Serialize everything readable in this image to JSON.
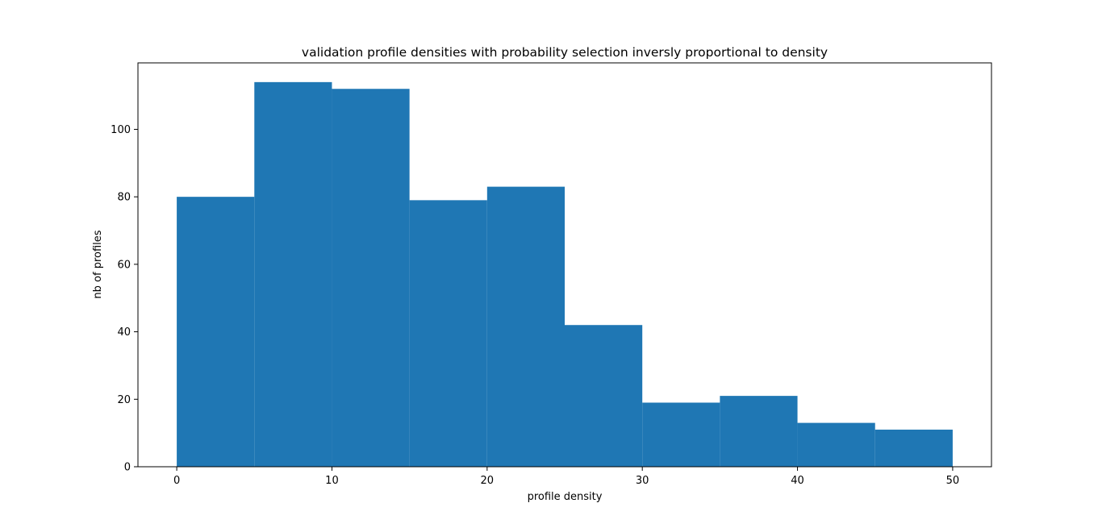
{
  "chart_data": {
    "type": "bar",
    "title": "validation profile densities with probability selection inversly proportional to density",
    "xlabel": "profile density",
    "ylabel": "nb of profiles",
    "bins": [
      {
        "x0": 0,
        "x1": 5,
        "count": 80
      },
      {
        "x0": 5,
        "x1": 10,
        "count": 114
      },
      {
        "x0": 10,
        "x1": 15,
        "count": 112
      },
      {
        "x0": 15,
        "x1": 20,
        "count": 79
      },
      {
        "x0": 20,
        "x1": 25,
        "count": 83
      },
      {
        "x0": 25,
        "x1": 30,
        "count": 42
      },
      {
        "x0": 30,
        "x1": 35,
        "count": 19
      },
      {
        "x0": 35,
        "x1": 40,
        "count": 21
      },
      {
        "x0": 40,
        "x1": 45,
        "count": 13
      },
      {
        "x0": 45,
        "x1": 50,
        "count": 11
      }
    ],
    "xticks": [
      "0",
      "10",
      "20",
      "30",
      "40",
      "50"
    ],
    "yticks": [
      "0",
      "20",
      "40",
      "60",
      "80",
      "100"
    ],
    "xlim": [
      -2.5,
      52.5
    ],
    "ylim": [
      0,
      119.7
    ],
    "grid": false,
    "bar_color": "#1f77b4"
  }
}
